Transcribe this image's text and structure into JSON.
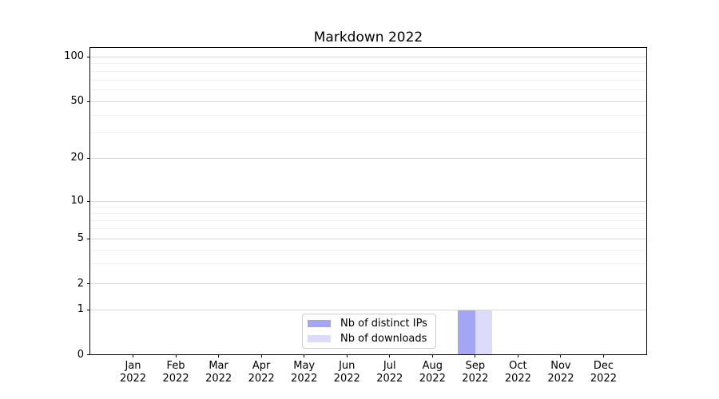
{
  "chart_data": {
    "type": "bar",
    "title": "Markdown 2022",
    "xlabel": "",
    "ylabel": "",
    "categories": [
      "Jan",
      "Feb",
      "Mar",
      "Apr",
      "May",
      "Jun",
      "Jul",
      "Aug",
      "Sep",
      "Oct",
      "Nov",
      "Dec"
    ],
    "x_sublabel_year": "2022",
    "series": [
      {
        "name": "Nb of distinct IPs",
        "color": "#a5a5f6",
        "values": [
          0,
          0,
          0,
          0,
          0,
          0,
          0,
          0,
          1,
          0,
          0,
          0
        ]
      },
      {
        "name": "Nb of downloads",
        "color": "#dcdcfa",
        "values": [
          0,
          0,
          0,
          0,
          0,
          0,
          0,
          0,
          1,
          0,
          0,
          0
        ]
      }
    ],
    "y_axis": {
      "scale": "symlog",
      "range": [
        0,
        140
      ],
      "ticks": [
        {
          "value": 100,
          "label": "100",
          "f": 0.0285
        },
        {
          "value": 50,
          "label": "50",
          "f": 0.1736
        },
        {
          "value": 20,
          "label": "20",
          "f": 0.3583
        },
        {
          "value": 10,
          "label": "10",
          "f": 0.4987
        },
        {
          "value": 5,
          "label": "5",
          "f": 0.6218
        },
        {
          "value": 2,
          "label": "2",
          "f": 0.7694
        },
        {
          "value": 1,
          "label": "1",
          "f": 0.8531
        },
        {
          "value": 0,
          "label": "0",
          "f": 1.0
        }
      ],
      "minor_gridline_f": [
        0.0506,
        0.0752,
        0.1032,
        0.1354,
        0.2186,
        0.2766,
        0.5174,
        0.5383,
        0.562,
        0.5894,
        0.6577,
        0.7041
      ]
    },
    "x_axis": {
      "slots": 13,
      "first_tick_slot": 1
    },
    "bar_width_frac_of_slot": 0.4,
    "grid": true,
    "legend": {
      "position": "inside bottom, left of center"
    }
  },
  "colors": {
    "major_grid": "#d8d8d8",
    "minor_grid": "#f0f0f0",
    "axis": "#000000",
    "background": "#ffffff"
  }
}
